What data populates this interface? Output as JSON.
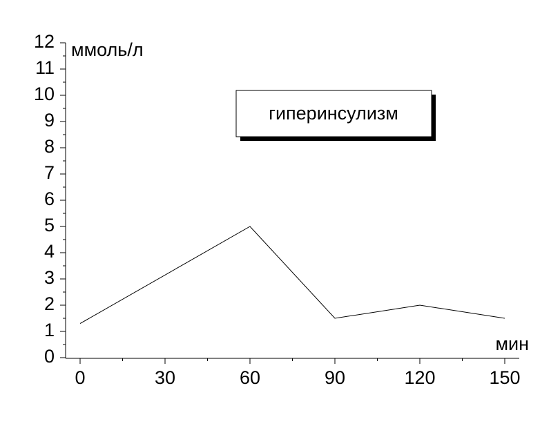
{
  "chart_data": {
    "type": "line",
    "x": [
      0,
      60,
      90,
      120,
      150
    ],
    "series": [
      {
        "name": "гиперинсулизм",
        "color": "#000000",
        "values": [
          1.3,
          5,
          1.5,
          2,
          1.5
        ]
      }
    ],
    "xlim": [
      0,
      150
    ],
    "xticks": [
      0,
      30,
      60,
      90,
      120,
      150
    ],
    "ylim": [
      0,
      12
    ],
    "yticks": [
      0,
      1,
      2,
      3,
      4,
      5,
      6,
      7,
      8,
      9,
      10,
      11,
      12
    ],
    "ylabel": "ммоль/л",
    "xlabel": "мин"
  }
}
